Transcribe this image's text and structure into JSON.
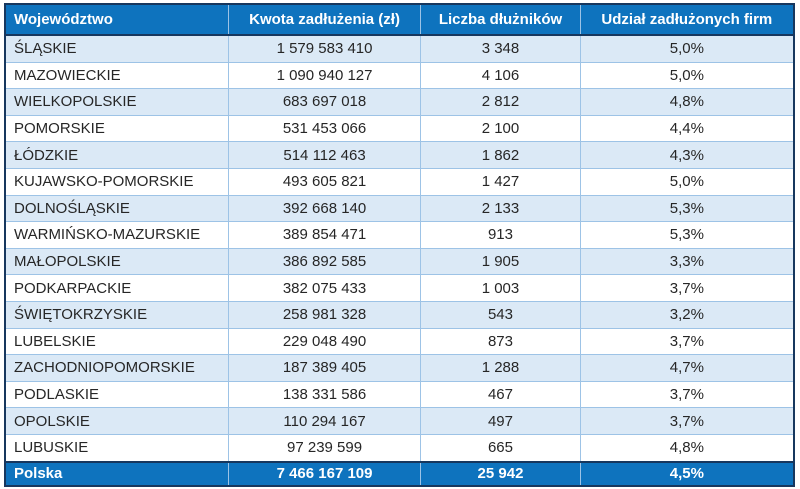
{
  "colors": {
    "header_bg": "#0E73BE",
    "header_text": "#FFFFFF",
    "row_alt_bg": "#DBE9F6",
    "row_bg": "#FFFFFF",
    "body_text": "#262626",
    "grid_light": "#9DC3E6",
    "border_dark": "#17375E",
    "footer_bg": "#0E73BE",
    "footer_text": "#FFFFFF"
  },
  "chart_data": {
    "type": "table",
    "columns": [
      "Województwo",
      "Kwota zadłużenia (zł)",
      "Liczba dłużników",
      "Udział zadłużonych firm"
    ],
    "rows": [
      [
        "ŚLĄSKIE",
        "1 579 583 410",
        "3 348",
        "5,0%"
      ],
      [
        "MAZOWIECKIE",
        "1 090 940 127",
        "4 106",
        "5,0%"
      ],
      [
        "WIELKOPOLSKIE",
        "683 697 018",
        "2 812",
        "4,8%"
      ],
      [
        "POMORSKIE",
        "531 453 066",
        "2 100",
        "4,4%"
      ],
      [
        "ŁÓDZKIE",
        "514 112 463",
        "1 862",
        "4,3%"
      ],
      [
        "KUJAWSKO-POMORSKIE",
        "493 605 821",
        "1 427",
        "5,0%"
      ],
      [
        "DOLNOŚLĄSKIE",
        "392 668 140",
        "2 133",
        "5,3%"
      ],
      [
        "WARMIŃSKO-MAZURSKIE",
        "389 854 471",
        "913",
        "5,3%"
      ],
      [
        "MAŁOPOLSKIE",
        "386 892 585",
        "1 905",
        "3,3%"
      ],
      [
        "PODKARPACKIE",
        "382 075 433",
        "1 003",
        "3,7%"
      ],
      [
        "ŚWIĘTOKRZYSKIE",
        "258 981 328",
        "543",
        "3,2%"
      ],
      [
        "LUBELSKIE",
        "229 048 490",
        "873",
        "3,7%"
      ],
      [
        "ZACHODNIOPOMORSKIE",
        "187 389 405",
        "1 288",
        "4,7%"
      ],
      [
        "PODLASKIE",
        "138 331 586",
        "467",
        "3,7%"
      ],
      [
        "OPOLSKIE",
        "110 294 167",
        "497",
        "3,7%"
      ],
      [
        "LUBUSKIE",
        "97 239 599",
        "665",
        "4,8%"
      ]
    ],
    "footer_row": [
      "Polska",
      "7 466 167 109",
      "25 942",
      "4,5%"
    ],
    "records": [
      {
        "wojewodztwo": "ŚLĄSKIE",
        "kwota_zadluzenia_zl": 1579583410,
        "liczba_dluznikow": 3348,
        "udzial_zadluzonych_firm_pct": 5.0
      },
      {
        "wojewodztwo": "MAZOWIECKIE",
        "kwota_zadluzenia_zl": 1090940127,
        "liczba_dluznikow": 4106,
        "udzial_zadluzonych_firm_pct": 5.0
      },
      {
        "wojewodztwo": "WIELKOPOLSKIE",
        "kwota_zadluzenia_zl": 683697018,
        "liczba_dluznikow": 2812,
        "udzial_zadluzonych_firm_pct": 4.8
      },
      {
        "wojewodztwo": "POMORSKIE",
        "kwota_zadluzenia_zl": 531453066,
        "liczba_dluznikow": 2100,
        "udzial_zadluzonych_firm_pct": 4.4
      },
      {
        "wojewodztwo": "ŁÓDZKIE",
        "kwota_zadluzenia_zl": 514112463,
        "liczba_dluznikow": 1862,
        "udzial_zadluzonych_firm_pct": 4.3
      },
      {
        "wojewodztwo": "KUJAWSKO-POMORSKIE",
        "kwota_zadluzenia_zl": 493605821,
        "liczba_dluznikow": 1427,
        "udzial_zadluzonych_firm_pct": 5.0
      },
      {
        "wojewodztwo": "DOLNOŚLĄSKIE",
        "kwota_zadluzenia_zl": 392668140,
        "liczba_dluznikow": 2133,
        "udzial_zadluzonych_firm_pct": 5.3
      },
      {
        "wojewodztwo": "WARMIŃSKO-MAZURSKIE",
        "kwota_zadluzenia_zl": 389854471,
        "liczba_dluznikow": 913,
        "udzial_zadluzonych_firm_pct": 5.3
      },
      {
        "wojewodztwo": "MAŁOPOLSKIE",
        "kwota_zadluzenia_zl": 386892585,
        "liczba_dluznikow": 1905,
        "udzial_zadluzonych_firm_pct": 3.3
      },
      {
        "wojewodztwo": "PODKARPACKIE",
        "kwota_zadluzenia_zl": 382075433,
        "liczba_dluznikow": 1003,
        "udzial_zadluzonych_firm_pct": 3.7
      },
      {
        "wojewodztwo": "ŚWIĘTOKRZYSKIE",
        "kwota_zadluzenia_zl": 258981328,
        "liczba_dluznikow": 543,
        "udzial_zadluzonych_firm_pct": 3.2
      },
      {
        "wojewodztwo": "LUBELSKIE",
        "kwota_zadluzenia_zl": 229048490,
        "liczba_dluznikow": 873,
        "udzial_zadluzonych_firm_pct": 3.7
      },
      {
        "wojewodztwo": "ZACHODNIOPOMORSKIE",
        "kwota_zadluzenia_zl": 187389405,
        "liczba_dluznikow": 1288,
        "udzial_zadluzonych_firm_pct": 4.7
      },
      {
        "wojewodztwo": "PODLASKIE",
        "kwota_zadluzenia_zl": 138331586,
        "liczba_dluznikow": 467,
        "udzial_zadluzonych_firm_pct": 3.7
      },
      {
        "wojewodztwo": "OPOLSKIE",
        "kwota_zadluzenia_zl": 110294167,
        "liczba_dluznikow": 497,
        "udzial_zadluzonych_firm_pct": 3.7
      },
      {
        "wojewodztwo": "LUBUSKIE",
        "kwota_zadluzenia_zl": 97239599,
        "liczba_dluznikow": 665,
        "udzial_zadluzonych_firm_pct": 4.8
      },
      {
        "wojewodztwo": "Polska",
        "kwota_zadluzenia_zl": 7466167109,
        "liczba_dluznikow": 25942,
        "udzial_zadluzonych_firm_pct": 4.5
      }
    ]
  }
}
